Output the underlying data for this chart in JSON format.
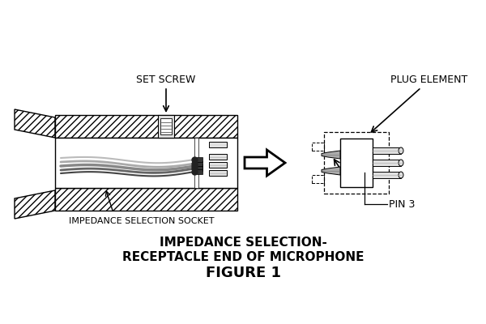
{
  "title_line1": "IMPEDANCE SELECTION-",
  "title_line2": "RECEPTACLE END OF MICROPHONE",
  "title_line3": "FIGURE 1",
  "label_set_screw": "SET SCREW",
  "label_impedance": "IMPEDANCE SELECTION SOCKET",
  "label_plug": "PLUG ELEMENT",
  "label_pin3": "PIN 3",
  "bg_color": "#ffffff",
  "line_color": "#000000",
  "gray_light": "#e0e0e0",
  "gray_mid": "#aaaaaa"
}
